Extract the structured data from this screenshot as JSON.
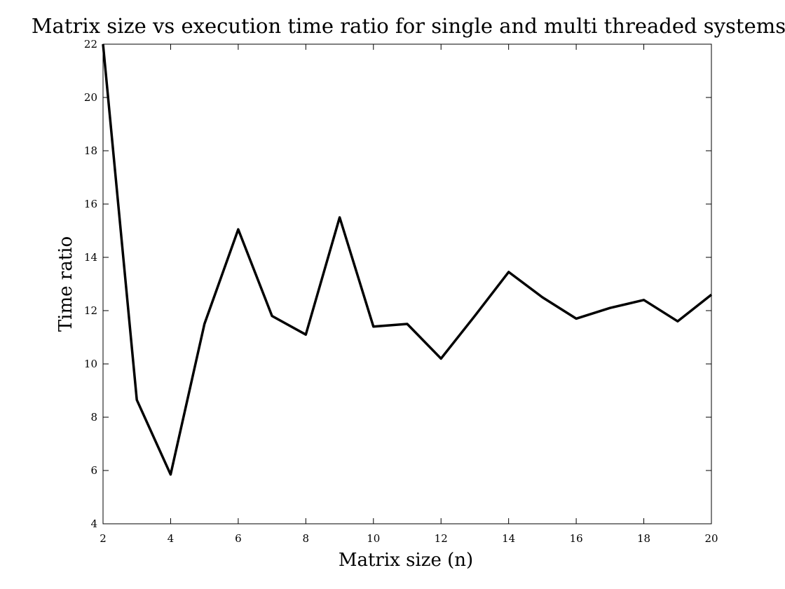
{
  "chart_data": {
    "type": "line",
    "title": "Matrix size vs execution time ratio for single and multi threaded systems",
    "xlabel": "Matrix size (n)",
    "ylabel": "Time ratio",
    "xlim": [
      2,
      20
    ],
    "ylim": [
      4,
      22
    ],
    "xticks": [
      2,
      4,
      6,
      8,
      10,
      12,
      14,
      16,
      18,
      20
    ],
    "yticks": [
      4,
      6,
      8,
      10,
      12,
      14,
      16,
      18,
      20,
      22
    ],
    "grid": false,
    "legend": "none",
    "line_color": "#000000",
    "series": [
      {
        "x": [
          2,
          3,
          4,
          5,
          6,
          7,
          8,
          9,
          10,
          11,
          12,
          13,
          14,
          15,
          16,
          17,
          18,
          19,
          20
        ],
        "y": [
          22.0,
          8.65,
          5.85,
          11.5,
          15.05,
          11.8,
          11.1,
          15.5,
          11.4,
          11.5,
          10.2,
          11.8,
          13.45,
          12.5,
          11.7,
          12.1,
          12.4,
          11.6,
          12.6
        ]
      }
    ]
  }
}
